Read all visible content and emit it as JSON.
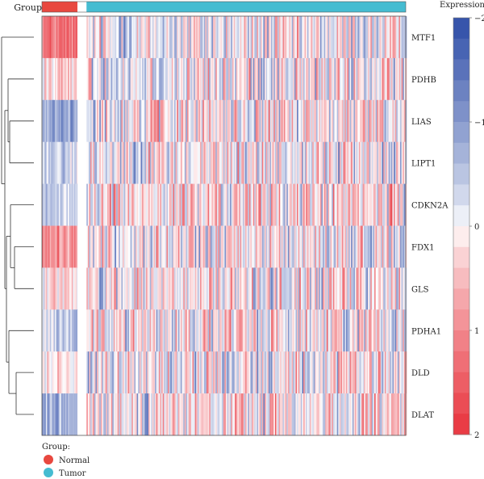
{
  "chart_data": {
    "type": "heatmap",
    "title": "",
    "group_bar": {
      "label": "Group",
      "groups": [
        {
          "name": "Normal",
          "color": "#e8483f",
          "sample_fraction": 0.1
        },
        {
          "name": "Tumor",
          "color": "#45bcd1",
          "sample_fraction": 0.9
        }
      ],
      "gap_fraction": 0.025
    },
    "rows": [
      "MTF1",
      "PDHB",
      "LIAS",
      "LIPT1",
      "CDKN2A",
      "FDX1",
      "GLS",
      "PDHA1",
      "DLD",
      "DLAT"
    ],
    "normal_group_tendency": [
      1.2,
      0.35,
      -0.8,
      -0.3,
      -0.5,
      1.0,
      0.25,
      -0.4,
      0.2,
      -0.8
    ],
    "tumor_group_tendency": [
      -0.1,
      0.0,
      0.1,
      0.05,
      0.2,
      0.0,
      0.05,
      0.1,
      0.0,
      0.1
    ],
    "colorbar": {
      "title": "Expression",
      "range": [
        -2,
        2
      ],
      "ticks": [
        {
          "value": -2,
          "label": "−2"
        },
        {
          "value": -1,
          "label": "−1"
        },
        {
          "value": 0,
          "label": "0"
        },
        {
          "value": 1,
          "label": "1"
        },
        {
          "value": 2,
          "label": "2"
        }
      ],
      "low_color": "#2f4ea8",
      "mid_color": "#ffffff",
      "high_color": "#e8343d",
      "steps": 20
    },
    "legend": {
      "title": "Group:",
      "items": [
        {
          "label": "Normal",
          "color": "#e8483f"
        },
        {
          "label": "Tumor",
          "color": "#45bcd1"
        }
      ],
      "placement": "bottom-left"
    },
    "dendrogram": "rows, left side"
  }
}
